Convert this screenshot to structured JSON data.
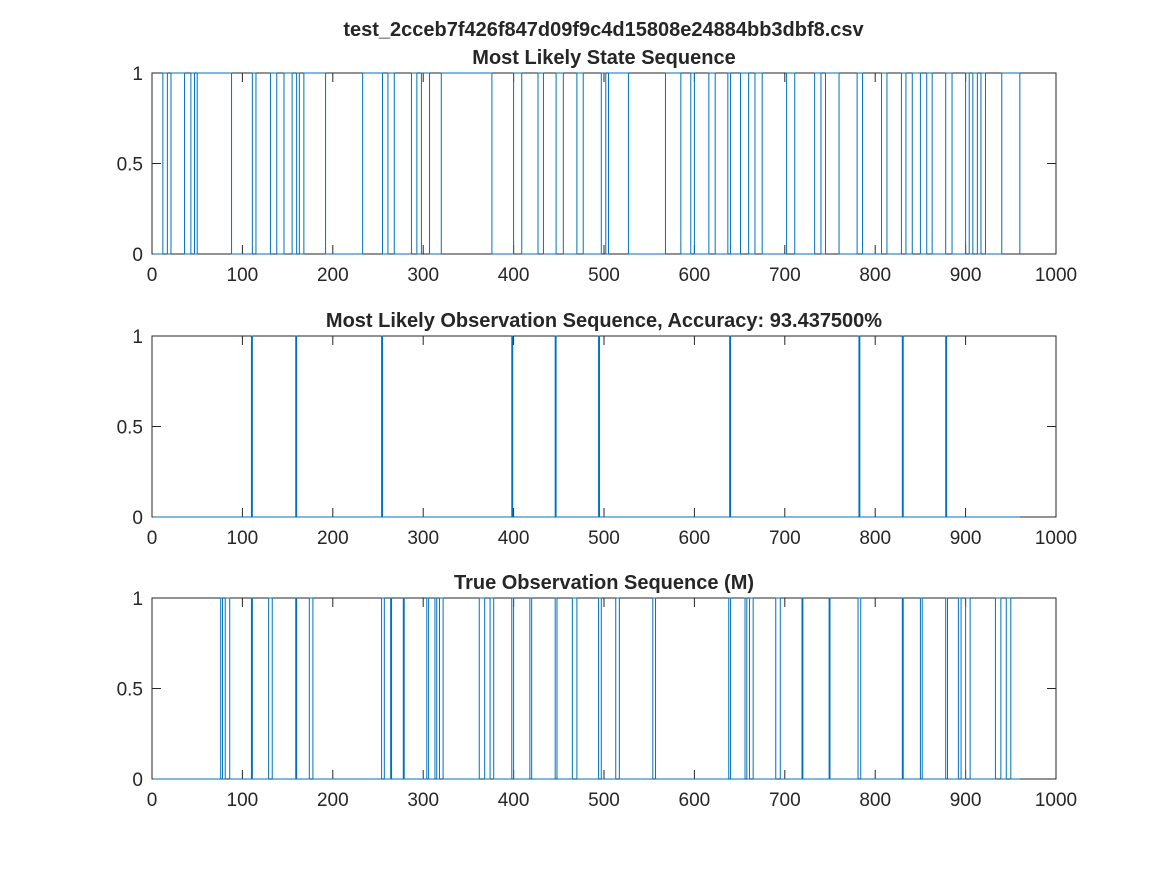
{
  "figure": {
    "suptitle": "test_2cceb7f426f847d09f9c4d15808e24884bb3dbf8.csv"
  },
  "chart_data": [
    {
      "type": "line",
      "title": "Most Likely State Sequence",
      "xlabel": "",
      "ylabel": "",
      "xlim": [
        0,
        1000
      ],
      "ylim": [
        0,
        1
      ],
      "xticks": [
        "0",
        "100",
        "200",
        "300",
        "400",
        "500",
        "600",
        "700",
        "800",
        "900",
        "1000"
      ],
      "yticks": [
        "0",
        "0.5",
        "1"
      ],
      "grid": false,
      "line_color": "#0072BD",
      "n_points": 960,
      "high_intervals": [
        [
          12,
          17
        ],
        [
          21,
          36
        ],
        [
          43,
          47
        ],
        [
          50,
          88
        ],
        [
          111,
          115
        ],
        [
          131,
          138
        ],
        [
          146,
          155
        ],
        [
          160,
          163
        ],
        [
          168,
          192
        ],
        [
          233,
          255
        ],
        [
          261,
          268
        ],
        [
          287,
          293
        ],
        [
          298,
          307
        ],
        [
          320,
          376
        ],
        [
          400,
          409
        ],
        [
          427,
          433
        ],
        [
          447,
          455
        ],
        [
          470,
          477
        ],
        [
          497,
          502
        ],
        [
          505,
          527
        ],
        [
          568,
          585
        ],
        [
          596,
          600
        ],
        [
          616,
          623
        ],
        [
          637,
          640
        ],
        [
          651,
          660
        ],
        [
          667,
          675
        ],
        [
          702,
          711
        ],
        [
          733,
          740
        ],
        [
          745,
          760
        ],
        [
          780,
          786
        ],
        [
          807,
          813
        ],
        [
          829,
          834
        ],
        [
          841,
          850
        ],
        [
          857,
          863
        ],
        [
          878,
          885
        ],
        [
          900,
          904
        ],
        [
          908,
          913
        ],
        [
          917,
          922
        ],
        [
          940,
          960
        ]
      ]
    },
    {
      "type": "line",
      "title": "Most Likely Observation Sequence, Accuracy: 93.437500%",
      "xlabel": "",
      "ylabel": "",
      "xlim": [
        0,
        1000
      ],
      "ylim": [
        0,
        1
      ],
      "xticks": [
        "0",
        "100",
        "200",
        "300",
        "400",
        "500",
        "600",
        "700",
        "800",
        "900",
        "1000"
      ],
      "yticks": [
        "0",
        "0.5",
        "1"
      ],
      "grid": false,
      "line_color": "#0072BD",
      "n_points": 960,
      "high_intervals": [
        [
          110,
          111
        ],
        [
          159,
          160
        ],
        [
          254,
          255
        ],
        [
          398,
          399
        ],
        [
          446,
          447
        ],
        [
          494,
          495
        ],
        [
          639,
          640
        ],
        [
          782,
          783
        ],
        [
          830,
          831
        ],
        [
          878,
          879
        ]
      ]
    },
    {
      "type": "line",
      "title": "True Observation Sequence (M)",
      "xlabel": "",
      "ylabel": "",
      "xlim": [
        0,
        1000
      ],
      "ylim": [
        0,
        1
      ],
      "xticks": [
        "0",
        "100",
        "200",
        "300",
        "400",
        "500",
        "600",
        "700",
        "800",
        "900",
        "1000"
      ],
      "yticks": [
        "0",
        "0.5",
        "1"
      ],
      "grid": false,
      "line_color": "#0072BD",
      "n_points": 960,
      "high_intervals": [
        [
          76,
          78
        ],
        [
          81,
          86
        ],
        [
          110,
          111
        ],
        [
          129,
          133
        ],
        [
          159,
          160
        ],
        [
          174,
          178
        ],
        [
          254,
          257
        ],
        [
          264,
          265
        ],
        [
          278,
          279
        ],
        [
          304,
          306
        ],
        [
          313,
          315
        ],
        [
          318,
          322
        ],
        [
          362,
          368
        ],
        [
          374,
          378
        ],
        [
          398,
          400
        ],
        [
          418,
          420
        ],
        [
          446,
          448
        ],
        [
          465,
          470
        ],
        [
          494,
          497
        ],
        [
          513,
          517
        ],
        [
          554,
          557
        ],
        [
          638,
          640
        ],
        [
          656,
          658
        ],
        [
          661,
          665
        ],
        [
          690,
          695
        ],
        [
          719,
          720
        ],
        [
          749,
          750
        ],
        [
          781,
          784
        ],
        [
          830,
          831
        ],
        [
          850,
          852
        ],
        [
          878,
          880
        ],
        [
          892,
          895
        ],
        [
          900,
          905
        ],
        [
          933,
          939
        ],
        [
          945,
          950
        ]
      ]
    }
  ]
}
